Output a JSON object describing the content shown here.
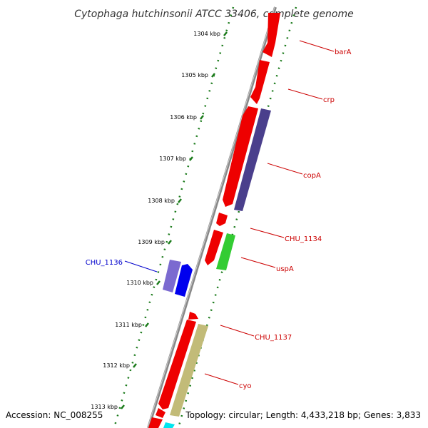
{
  "title": "Cytophaga hutchinsonii ATCC 33406, complete genome",
  "footer": {
    "accession": "Accession: NC_008255",
    "topology": "Topology: circular; Length: 4,433,218 bp; Genes: 3,833"
  },
  "kbp_ticks": [
    "1304 kbp",
    "1305 kbp",
    "1306 kbp",
    "1307 kbp",
    "1308 kbp",
    "1309 kbp",
    "1310 kbp",
    "1311 kbp",
    "1312 kbp",
    "1313 kbp"
  ],
  "gene_labels": [
    {
      "name": "barA",
      "side": "right",
      "color": "#cc0000"
    },
    {
      "name": "crp",
      "side": "right",
      "color": "#cc0000"
    },
    {
      "name": "copA",
      "side": "right",
      "color": "#cc0000"
    },
    {
      "name": "CHU_1134",
      "side": "right",
      "color": "#cc0000"
    },
    {
      "name": "uspA",
      "side": "right",
      "color": "#cc0000"
    },
    {
      "name": "CHU_1136",
      "side": "left",
      "color": "#0000cc"
    },
    {
      "name": "CHU_1137",
      "side": "right",
      "color": "#cc0000"
    },
    {
      "name": "cyo",
      "side": "right",
      "color": "#cc0000"
    }
  ],
  "colors": {
    "backbone": "#8a8a8a",
    "gene_red": "#ee0000",
    "gene_navy": "#4a3f8c",
    "gene_green": "#33cc33",
    "gene_purple": "#7b6ad0",
    "gene_blue": "#0000ee",
    "gene_khaki": "#c2bb78",
    "gene_cyan": "#00e5ee",
    "dots": "#1a7a1a"
  }
}
